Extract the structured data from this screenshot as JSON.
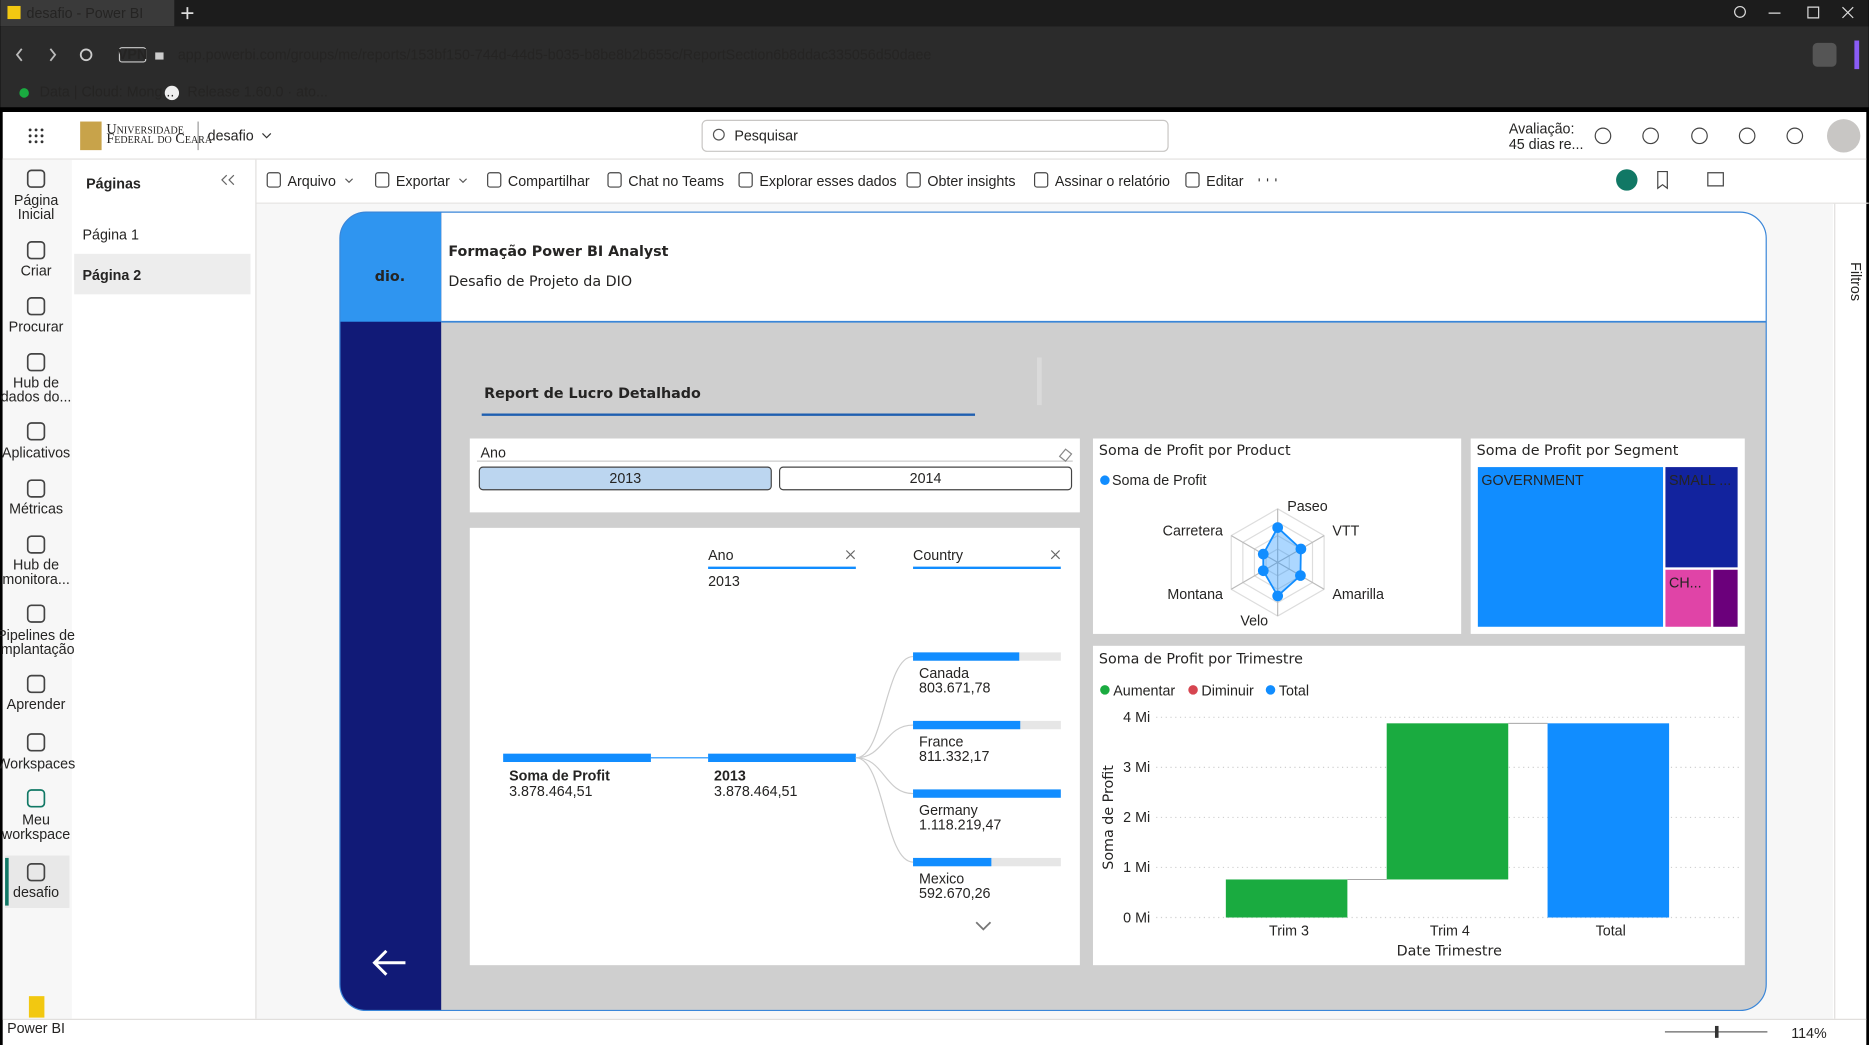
{
  "browser": {
    "tab_title": "desafio - Power BI",
    "vpn": "VPN",
    "url": "app.powerbi.com/groups/me/reports/153bf150-744d-44d5-b035-b8be8b2b655c/ReportSection6b8ddac335056d50daee",
    "bookmarks": [
      "Data | Cloud: Mong...",
      "Release 1.60.0 · ato..."
    ]
  },
  "header": {
    "org_lines": [
      "Universidade",
      "Federal do Ceará"
    ],
    "workspace": "desafio",
    "search": "Pesquisar",
    "trial_lines": [
      "Avaliação:",
      "45 dias re..."
    ]
  },
  "nav": [
    {
      "lines": [
        "Página",
        "Inicial"
      ]
    },
    {
      "lines": [
        "Criar"
      ]
    },
    {
      "lines": [
        "Procurar"
      ]
    },
    {
      "lines": [
        "Hub de",
        "dados do..."
      ]
    },
    {
      "lines": [
        "Aplicativos"
      ]
    },
    {
      "lines": [
        "Métricas"
      ]
    },
    {
      "lines": [
        "Hub de",
        "monitora..."
      ]
    },
    {
      "lines": [
        "Pipelines de",
        "implantação"
      ]
    },
    {
      "lines": [
        "Aprender"
      ]
    },
    {
      "lines": [
        "Workspaces"
      ]
    },
    {
      "lines": [
        "Meu",
        "workspace"
      ]
    },
    {
      "lines": [
        "desafio"
      ]
    },
    {
      "lines": [
        "Power BI"
      ]
    }
  ],
  "pages": {
    "title": "Páginas",
    "items": [
      "Página 1",
      "Página 2"
    ],
    "selected": 1
  },
  "toolbar": [
    "Arquivo",
    "Exportar",
    "Compartilhar",
    "Chat no Teams",
    "Explorar esses dados",
    "Obter insights",
    "Assinar o relatório",
    "Editar"
  ],
  "filters": "Filtros",
  "zoom": "114%",
  "report": {
    "logo": "dio.",
    "title": "Formação Power BI Analyst",
    "subtitle": "Desafio de Projeto da DIO",
    "heading": "Report de Lucro Detalhado",
    "slicer": {
      "title": "Ano",
      "options": [
        "2013",
        "2014"
      ],
      "selected": 0
    },
    "decomp": {
      "root": {
        "label": "Soma de Profit",
        "value": 3878464.51,
        "value_label": "3.878.464,51"
      },
      "levels": [
        {
          "header": "Ano",
          "nodes": [
            {
              "label": "2013",
              "value": 3878464.51,
              "value_label": "3.878.464,51"
            }
          ]
        },
        {
          "header": "Country",
          "nodes": [
            {
              "label": "Canada",
              "value": 803671.78,
              "value_label": "803.671,78"
            },
            {
              "label": "France",
              "value": 811332.17,
              "value_label": "811.332,17"
            },
            {
              "label": "Germany",
              "value": 1118219.47,
              "value_label": "1.118.219,47"
            },
            {
              "label": "Mexico",
              "value": 592670.26,
              "value_label": "592.670,26"
            }
          ]
        }
      ],
      "color": "#118dff"
    },
    "radar": {
      "type": "radar",
      "title": "Soma de Profit por Product",
      "series_name": "Soma de Profit",
      "color": "#118dff",
      "categories": [
        "Paseo",
        "VTT",
        "Amarilla",
        "Velo",
        "Montana",
        "Carretera"
      ],
      "values": [
        1300000,
        1000000,
        980000,
        1250000,
        620000,
        620000
      ],
      "rlim": [
        0,
        2000000
      ]
    },
    "treemap": {
      "type": "treemap",
      "title": "Soma de Profit por Segment",
      "labels": [
        "GOVERNMENT",
        "SMALL ...",
        "CH...",
        null
      ],
      "values": [
        2780000,
        700000,
        260000,
        145000
      ],
      "colors": [
        "#118dff",
        "#12239e",
        "#e044a7",
        "#6b007b"
      ]
    },
    "waterfall": {
      "type": "waterfall",
      "title": "Soma de Profit por Trimestre",
      "legend": [
        {
          "name": "Aumentar",
          "color": "#1aab40"
        },
        {
          "name": "Diminuir",
          "color": "#d64550"
        },
        {
          "name": "Total",
          "color": "#118dff"
        }
      ],
      "categories": [
        "Trim 3",
        "Trim 4",
        "Total"
      ],
      "values": [
        760000,
        3120000,
        3880000
      ],
      "last_is_total": true,
      "ylim": [
        0,
        4000000
      ],
      "yticks": [
        {
          "value": 0,
          "label": "0 Mi"
        },
        {
          "value": 1000000,
          "label": "1 Mi"
        },
        {
          "value": 2000000,
          "label": "2 Mi"
        },
        {
          "value": 3000000,
          "label": "3 Mi"
        },
        {
          "value": 4000000,
          "label": "4 Mi"
        }
      ],
      "ylabel": "Soma de Profit",
      "xlabel": "Date Trimestre",
      "grid": true
    }
  }
}
